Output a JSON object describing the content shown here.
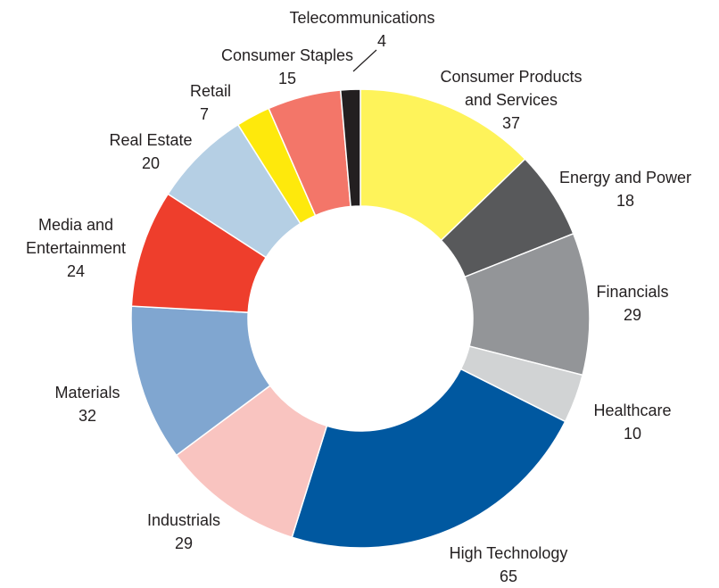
{
  "chart_data": {
    "type": "donut",
    "categories": [
      "Consumer Products and Services",
      "Energy and Power",
      "Financials",
      "Healthcare",
      "High Technology",
      "Industrials",
      "Materials",
      "Media and Entertainment",
      "Real Estate",
      "Retail",
      "Consumer Staples",
      "Telecommunications"
    ],
    "values": [
      37,
      18,
      29,
      10,
      65,
      29,
      32,
      24,
      20,
      7,
      15,
      4
    ],
    "colors": [
      "#fef35a",
      "#58595b",
      "#939598",
      "#d1d3d4",
      "#0058a0",
      "#f9c4c0",
      "#80a6d0",
      "#ee3e2c",
      "#b5cfe4",
      "#fee90c",
      "#f37669",
      "#231f20"
    ]
  }
}
